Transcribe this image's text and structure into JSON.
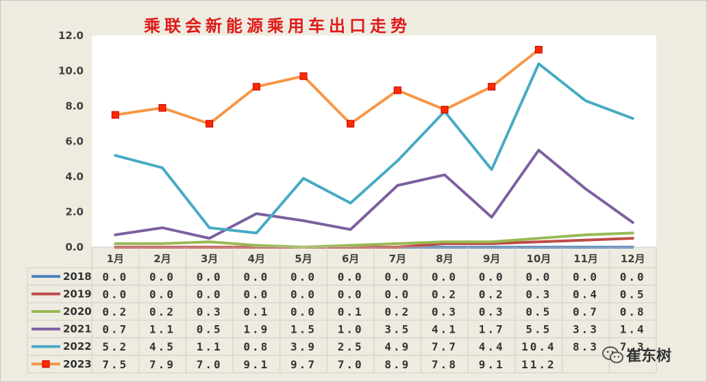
{
  "chart_data": {
    "type": "line",
    "title": "乘联会新能源乘用车出口走势",
    "categories": [
      "1月",
      "2月",
      "3月",
      "4月",
      "5月",
      "6月",
      "7月",
      "8月",
      "9月",
      "10月",
      "11月",
      "12月"
    ],
    "ylim": [
      0,
      12
    ],
    "yticks": [
      "0.0",
      "2.0",
      "4.0",
      "6.0",
      "8.0",
      "10.0",
      "12.0"
    ],
    "grid": false,
    "legend": "table-below",
    "series": [
      {
        "name": "2018",
        "color": "#4a7ebb",
        "values": [
          0.0,
          0.0,
          0.0,
          0.0,
          0.0,
          0.0,
          0.0,
          0.0,
          0.0,
          0.0,
          0.0,
          0.0
        ],
        "labels": [
          "0.0",
          "0.0",
          "0.0",
          "0.0",
          "0.0",
          "0.0",
          "0.0",
          "0.0",
          "0.0",
          "0.0",
          "0.0",
          "0.0"
        ]
      },
      {
        "name": "2019",
        "color": "#be4b48",
        "values": [
          0.0,
          0.0,
          0.0,
          0.0,
          0.0,
          0.0,
          0.0,
          0.2,
          0.2,
          0.3,
          0.4,
          0.5
        ],
        "labels": [
          "0.0",
          "0.0",
          "0.0",
          "0.0",
          "0.0",
          "0.0",
          "0.0",
          "0.2",
          "0.2",
          "0.3",
          "0.4",
          "0.5"
        ]
      },
      {
        "name": "2020",
        "color": "#98b954",
        "values": [
          0.2,
          0.2,
          0.3,
          0.1,
          0.0,
          0.1,
          0.2,
          0.3,
          0.3,
          0.5,
          0.7,
          0.8
        ],
        "labels": [
          "0.2",
          "0.2",
          "0.3",
          "0.1",
          "0.0",
          "0.1",
          "0.2",
          "0.3",
          "0.3",
          "0.5",
          "0.7",
          "0.8"
        ]
      },
      {
        "name": "2021",
        "color": "#7d5fa0",
        "values": [
          0.7,
          1.1,
          0.5,
          1.9,
          1.5,
          1.0,
          3.5,
          4.1,
          1.7,
          5.5,
          3.3,
          1.4
        ],
        "labels": [
          "0.7",
          "1.1",
          "0.5",
          "1.9",
          "1.5",
          "1.0",
          "3.5",
          "4.1",
          "1.7",
          "5.5",
          "3.3",
          "1.4"
        ]
      },
      {
        "name": "2022",
        "color": "#46aac5",
        "values": [
          5.2,
          4.5,
          1.1,
          0.8,
          3.9,
          2.5,
          4.9,
          7.7,
          4.4,
          10.4,
          8.3,
          7.3
        ],
        "labels": [
          "5.2",
          "4.5",
          "1.1",
          "0.8",
          "3.9",
          "2.5",
          "4.9",
          "7.7",
          "4.4",
          "10.4",
          "8.3",
          "7.3"
        ]
      },
      {
        "name": "2023",
        "color": "#f79646",
        "marker": "#ff2a00",
        "values": [
          7.5,
          7.9,
          7.0,
          9.1,
          9.7,
          7.0,
          8.9,
          7.8,
          9.1,
          11.2,
          null,
          null
        ],
        "labels": [
          "7.5",
          "7.9",
          "7.0",
          "9.1",
          "9.7",
          "7.0",
          "8.9",
          "7.8",
          "9.1",
          "11.2",
          "",
          ""
        ]
      }
    ]
  },
  "watermark": {
    "text": "崔东树",
    "icon": "wechat-icon"
  }
}
